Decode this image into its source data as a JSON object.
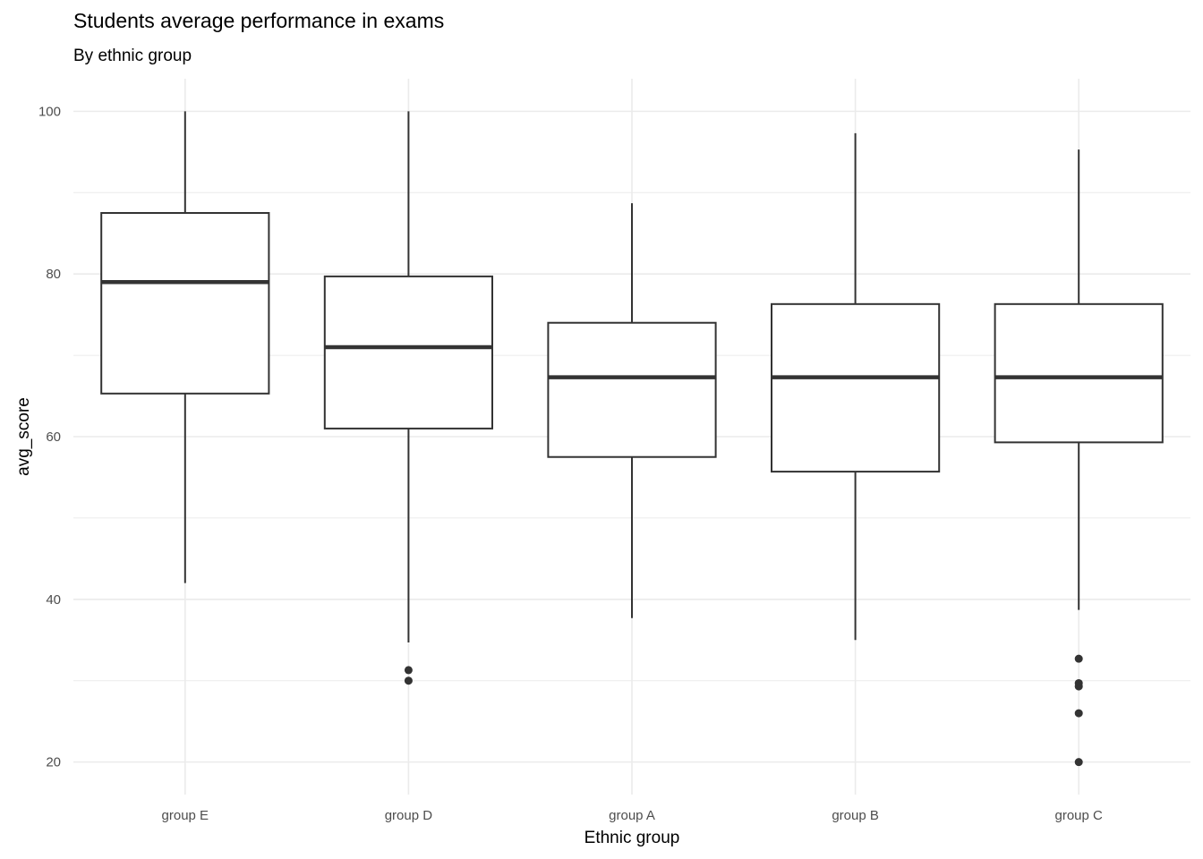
{
  "chart_data": {
    "type": "boxplot",
    "title": "Students average performance in exams",
    "subtitle": "By ethnic group",
    "xlabel": "Ethnic group",
    "ylabel": "avg_score",
    "ylim": [
      16,
      104
    ],
    "yticks": [
      20,
      40,
      60,
      80,
      100
    ],
    "grid": true,
    "categories": [
      "group E",
      "group D",
      "group A",
      "group B",
      "group C"
    ],
    "boxes": [
      {
        "category": "group E",
        "whisker_low": 42.0,
        "q1": 65.3,
        "median": 79.0,
        "q3": 87.5,
        "whisker_high": 100.0,
        "outliers": []
      },
      {
        "category": "group D",
        "whisker_low": 34.7,
        "q1": 61.0,
        "median": 71.0,
        "q3": 79.7,
        "whisker_high": 100.0,
        "outliers": [
          31.3,
          30.0
        ]
      },
      {
        "category": "group A",
        "whisker_low": 37.7,
        "q1": 57.5,
        "median": 67.3,
        "q3": 74.0,
        "whisker_high": 88.7,
        "outliers": []
      },
      {
        "category": "group B",
        "whisker_low": 35.0,
        "q1": 55.7,
        "median": 67.3,
        "q3": 76.3,
        "whisker_high": 97.3,
        "outliers": []
      },
      {
        "category": "group C",
        "whisker_low": 38.7,
        "q1": 59.3,
        "median": 67.3,
        "q3": 76.3,
        "whisker_high": 95.3,
        "outliers": [
          32.7,
          29.7,
          29.3,
          26.0,
          20.0
        ]
      }
    ],
    "colors": {
      "box_line": "#333333",
      "grid": "#ebebeb",
      "fill": "#ffffff"
    }
  }
}
